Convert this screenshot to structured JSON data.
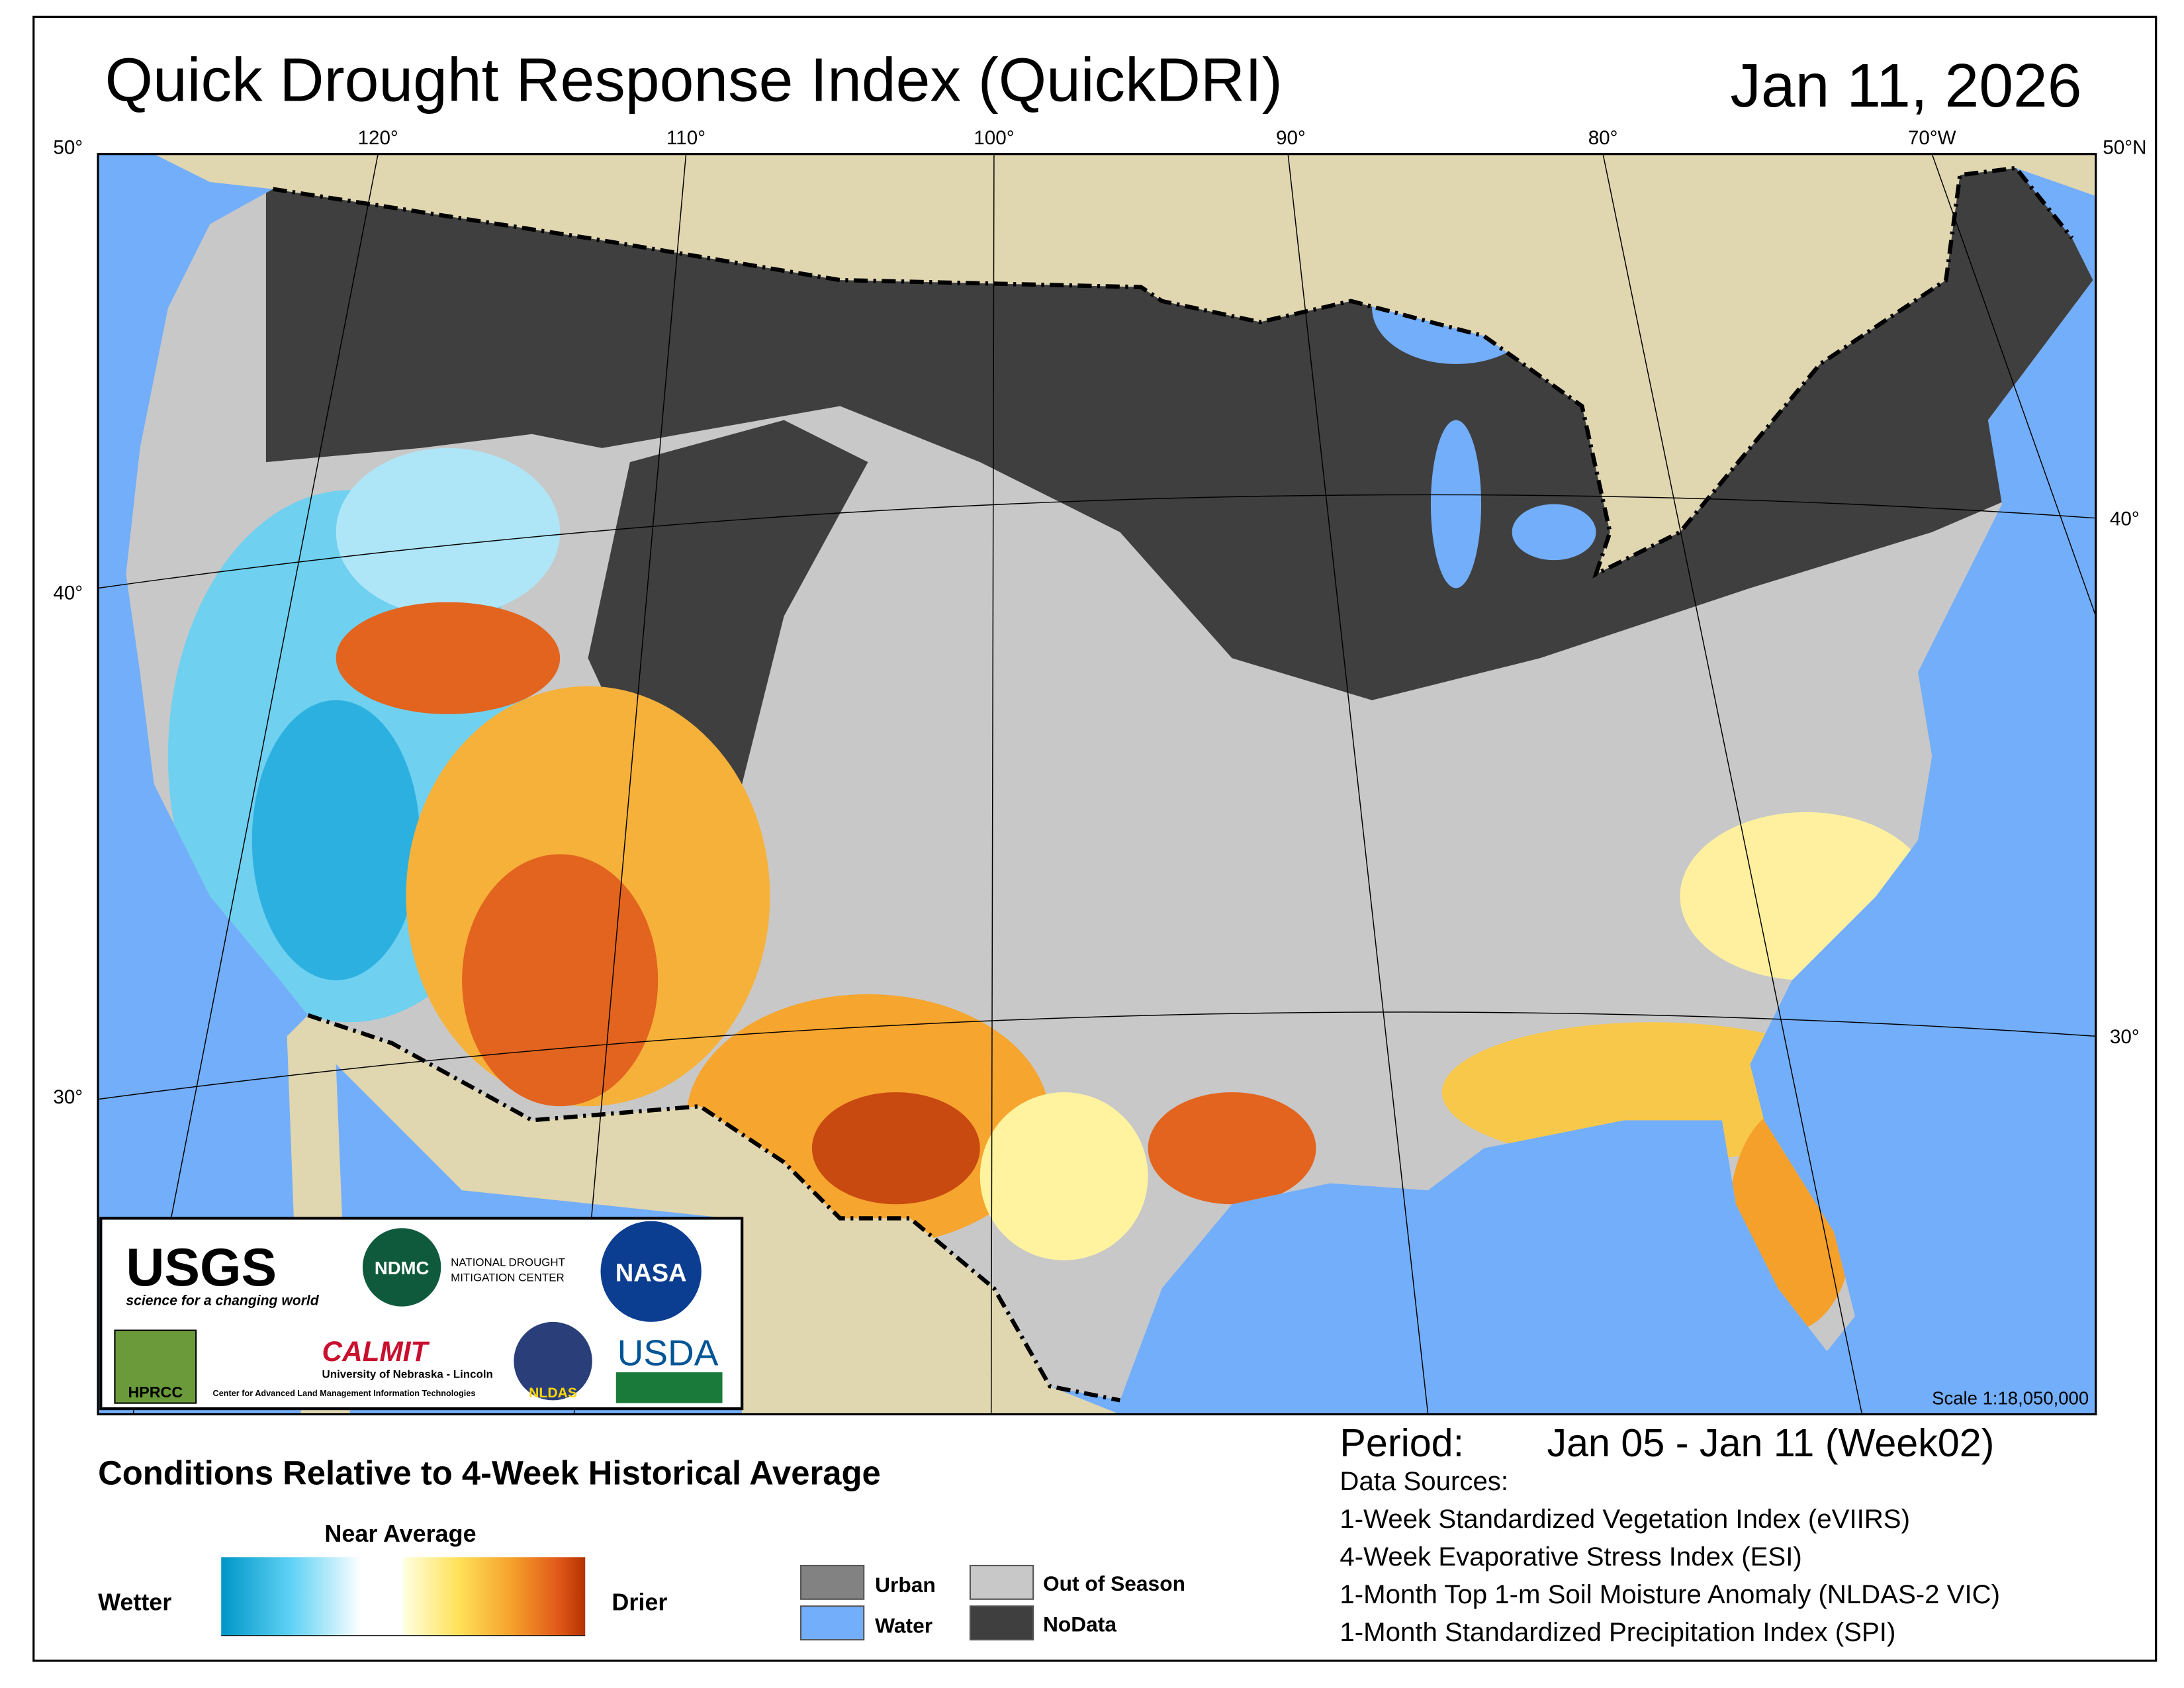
{
  "header": {
    "title": "Quick Drought Response Index (QuickDRI)",
    "date": "Jan 11, 2026"
  },
  "map": {
    "lon_labels": [
      "120°",
      "110°",
      "100°",
      "90°",
      "80°",
      "70°W"
    ],
    "lat_left": [
      "50°",
      "40°",
      "30°"
    ],
    "lat_right": [
      "50°N",
      "40°",
      "30°"
    ],
    "scale": "Scale 1:18,050,000"
  },
  "logos": {
    "usgs": "USGS",
    "usgs_tag": "science for a changing world",
    "ndmc": "NDMC",
    "ndmc_name_1": "NATIONAL DROUGHT",
    "ndmc_name_2": "MITIGATION CENTER",
    "nasa": "NASA",
    "hprcc": "HPRCC",
    "calmit": "CALMIT",
    "unl": "University of Nebraska - Lincoln",
    "calmit_name": "Center for Advanced Land Management Information Technologies",
    "nldas": "NLDAS",
    "usda": "USDA"
  },
  "legend": {
    "heading": "Conditions Relative to 4-Week Historical Average",
    "near_average": "Near Average",
    "wetter": "Wetter",
    "drier": "Drier",
    "classes": [
      "Urban",
      "Water",
      "Out of Season",
      "NoData"
    ]
  },
  "info": {
    "period_label": "Period:",
    "period": "Jan 05 - Jan 11 (Week02)",
    "sources_title": "Data Sources:",
    "sources": [
      "1-Week Standardized Vegetation Index (eVIIRS)",
      "4-Week Evaporative Stress Index (ESI)",
      "1-Month Top 1-m Soil Moisture Anomaly (NLDAS-2 VIC)",
      "1-Month Standardized Precipitation Index (SPI)"
    ]
  }
}
